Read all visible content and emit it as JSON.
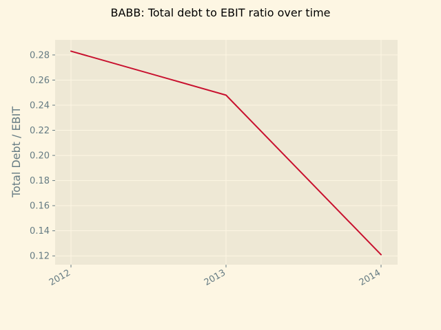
{
  "chart_data": {
    "type": "line",
    "title": "BABB: Total debt to EBIT ratio over time",
    "xlabel": "",
    "ylabel": "Total Debt / EBIT",
    "categories": [
      "2012",
      "2013",
      "2014"
    ],
    "series": [
      {
        "values": [
          0.283,
          0.248,
          0.121
        ]
      }
    ],
    "yticks": [
      "0.12",
      "0.14",
      "0.16",
      "0.18",
      "0.20",
      "0.22",
      "0.24",
      "0.26",
      "0.28"
    ],
    "ylim": [
      0.113,
      0.292
    ],
    "grid": true,
    "colors": {
      "background": "#fdf6e3",
      "plot_background": "#eee8d5",
      "line": "#c8102e",
      "grid": "#fdf6e3",
      "text": "#657b83"
    }
  }
}
